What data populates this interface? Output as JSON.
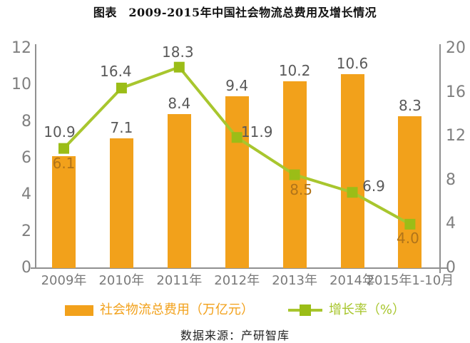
{
  "title": "图表　2009-2015年中国社会物流总费用及增长情况",
  "footer": "数据来源：产研智库",
  "colors": {
    "bar": "#F2A11B",
    "line": "#A8C62E",
    "marker": "#9BBD17",
    "axis": "#909090",
    "tick_label": "#7F7F7F",
    "data_label": "#595959",
    "data_label_on_bar": "#B0741A"
  },
  "chart_data": {
    "type": "combo",
    "categories": [
      "2009年",
      "2010年",
      "2011年",
      "2012年",
      "2013年",
      "2014年",
      "2015年1-10月"
    ],
    "series": [
      {
        "name": "社会物流总费用（万亿元）",
        "type": "bar",
        "axis": "left",
        "values": [
          6.1,
          7.1,
          8.4,
          9.4,
          10.2,
          10.6,
          8.3
        ]
      },
      {
        "name": "增长率（%）",
        "type": "line",
        "axis": "right",
        "values": [
          10.9,
          16.4,
          18.3,
          11.9,
          8.5,
          6.9,
          4.0
        ]
      }
    ],
    "left_axis": {
      "min": 0,
      "max": 12,
      "step": 2,
      "ticks": [
        "0",
        "2",
        "4",
        "6",
        "8",
        "10",
        "12"
      ]
    },
    "right_axis": {
      "min": 0,
      "max": 20,
      "step": 4,
      "ticks": [
        "0",
        "4",
        "8",
        "12",
        "16",
        "20"
      ]
    },
    "grid": false,
    "legend_position": "bottom",
    "legend": [
      {
        "label": "社会物流总费用（万亿元）",
        "swatch": "bar"
      },
      {
        "label": "增长率（%）",
        "swatch": "line"
      }
    ]
  }
}
